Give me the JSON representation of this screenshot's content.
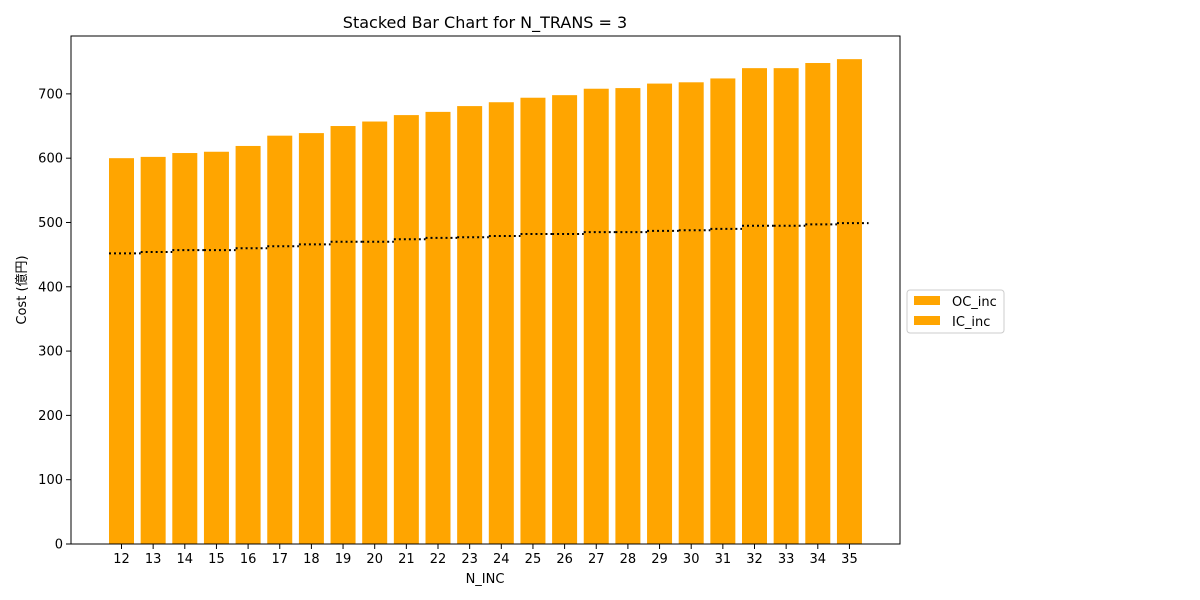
{
  "chart_data": {
    "type": "bar",
    "stacked": true,
    "title": "Stacked Bar Chart for N_TRANS = 3",
    "xlabel": "N_INC",
    "ylabel": "Cost (億円)",
    "ylim": [
      0,
      790
    ],
    "yticks": [
      0,
      100,
      200,
      300,
      400,
      500,
      600,
      700
    ],
    "grid": false,
    "legend_position": "center right, outside plot",
    "categories": [
      "12",
      "13",
      "14",
      "15",
      "16",
      "17",
      "18",
      "19",
      "20",
      "21",
      "22",
      "23",
      "24",
      "25",
      "26",
      "27",
      "28",
      "29",
      "30",
      "31",
      "32",
      "33",
      "34",
      "35"
    ],
    "series": [
      {
        "name": "IC_inc",
        "color": "#FFA500",
        "values": [
          452,
          454,
          457,
          457,
          460,
          463,
          466,
          470,
          470,
          474,
          476,
          477,
          479,
          482,
          482,
          485,
          485,
          487,
          488,
          490,
          495,
          495,
          497,
          499
        ]
      },
      {
        "name": "OC_inc",
        "color": "#FFA500",
        "values": [
          148,
          148,
          151,
          153,
          159,
          172,
          173,
          180,
          187,
          193,
          196,
          204,
          208,
          212,
          216,
          223,
          224,
          229,
          230,
          234,
          245,
          245,
          251,
          255
        ]
      }
    ],
    "totals": [
      600,
      602,
      608,
      610,
      619,
      635,
      639,
      650,
      657,
      667,
      672,
      681,
      687,
      694,
      698,
      708,
      709,
      716,
      718,
      724,
      740,
      740,
      748,
      754
    ],
    "boundary_style": "dotted black line at top of IC_inc segment"
  }
}
